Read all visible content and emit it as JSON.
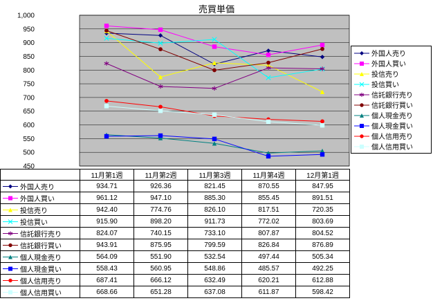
{
  "chart_data": {
    "type": "line",
    "title": "売買単価",
    "categories": [
      "11月第1週",
      "11月第2週",
      "11月第3週",
      "11月第4週",
      "12月第1週"
    ],
    "ylim": [
      450,
      1000
    ],
    "ytick_step": 50,
    "ytick_labels": [
      "1,000",
      "950",
      "900",
      "850",
      "800",
      "750",
      "700",
      "650",
      "600",
      "550",
      "500",
      "450"
    ],
    "grid": true,
    "legend_position": "right",
    "plot_bg": "#C0C0C0",
    "axis_color": "#000000",
    "series": [
      {
        "name": "外国人売り",
        "color": "#000080",
        "marker": "diamond",
        "values": [
          934.71,
          926.36,
          821.45,
          870.55,
          847.95
        ]
      },
      {
        "name": "外国人買い",
        "color": "#FF00FF",
        "marker": "square",
        "values": [
          961.12,
          947.1,
          885.3,
          855.45,
          891.51
        ]
      },
      {
        "name": "投信売り",
        "color": "#FFFF00",
        "marker": "triangle",
        "values": [
          942.4,
          774.76,
          826.1,
          817.51,
          720.35
        ]
      },
      {
        "name": "投信買い",
        "color": "#00FFFF",
        "marker": "x",
        "values": [
          915.9,
          898.2,
          911.73,
          772.02,
          803.69
        ]
      },
      {
        "name": "信託銀行売り",
        "color": "#800080",
        "marker": "asterisk",
        "values": [
          824.07,
          740.15,
          733.1,
          807.87,
          804.52
        ]
      },
      {
        "name": "信託銀行買い",
        "color": "#800000",
        "marker": "circle",
        "values": [
          943.91,
          875.95,
          799.59,
          826.84,
          876.89
        ]
      },
      {
        "name": "個人現金売り",
        "color": "#008080",
        "marker": "triangle",
        "values": [
          564.09,
          551.9,
          532.54,
          497.44,
          505.34
        ]
      },
      {
        "name": "個人現金買い",
        "color": "#0000FF",
        "marker": "square",
        "values": [
          558.43,
          560.95,
          548.86,
          485.57,
          492.25
        ]
      },
      {
        "name": "個人信用売り",
        "color": "#FF0000",
        "marker": "circle",
        "values": [
          687.41,
          666.12,
          632.49,
          620.21,
          612.88
        ]
      },
      {
        "name": "個人信用買い",
        "color": "#CCFFFF",
        "marker": "square",
        "values": [
          668.66,
          651.28,
          637.08,
          611.87,
          598.42
        ]
      }
    ]
  }
}
